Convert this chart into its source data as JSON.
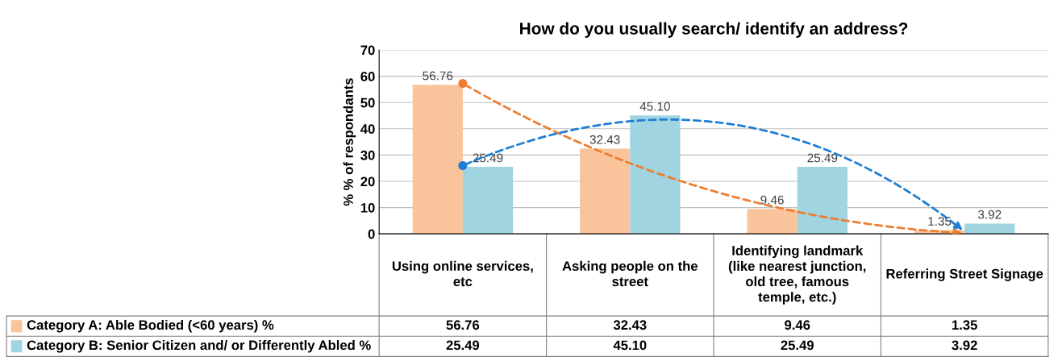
{
  "chart_data": {
    "type": "bar",
    "title": "How do you usually search/ identify an address?",
    "ylabel": "% % of respondants",
    "categories": [
      "Using online services,\netc",
      "Asking people on the\nstreet",
      "Identifying landmark\n(like nearest junction,\nold tree, famous\ntemple, etc.)",
      "Referring Street Signage"
    ],
    "series": [
      {
        "name": "Category A: Able Bodied (<60 years) %",
        "color": "#f9c49c",
        "values": [
          56.76,
          32.43,
          9.46,
          1.35
        ],
        "value_labels": [
          "56.76",
          "32.43",
          "9.46",
          "1.35"
        ]
      },
      {
        "name": "Category B: Senior Citizen and/ or Differently Abled %",
        "color": "#9fd4e0",
        "values": [
          25.49,
          45.1,
          25.49,
          3.92
        ],
        "value_labels": [
          "25.49",
          "45.10",
          "25.49",
          "3.92"
        ]
      }
    ],
    "ylim": [
      0,
      70
    ],
    "yticks": [
      0,
      10,
      20,
      30,
      40,
      50,
      60,
      70
    ],
    "grid": "y",
    "legend": "bottom",
    "data_labels": true
  }
}
